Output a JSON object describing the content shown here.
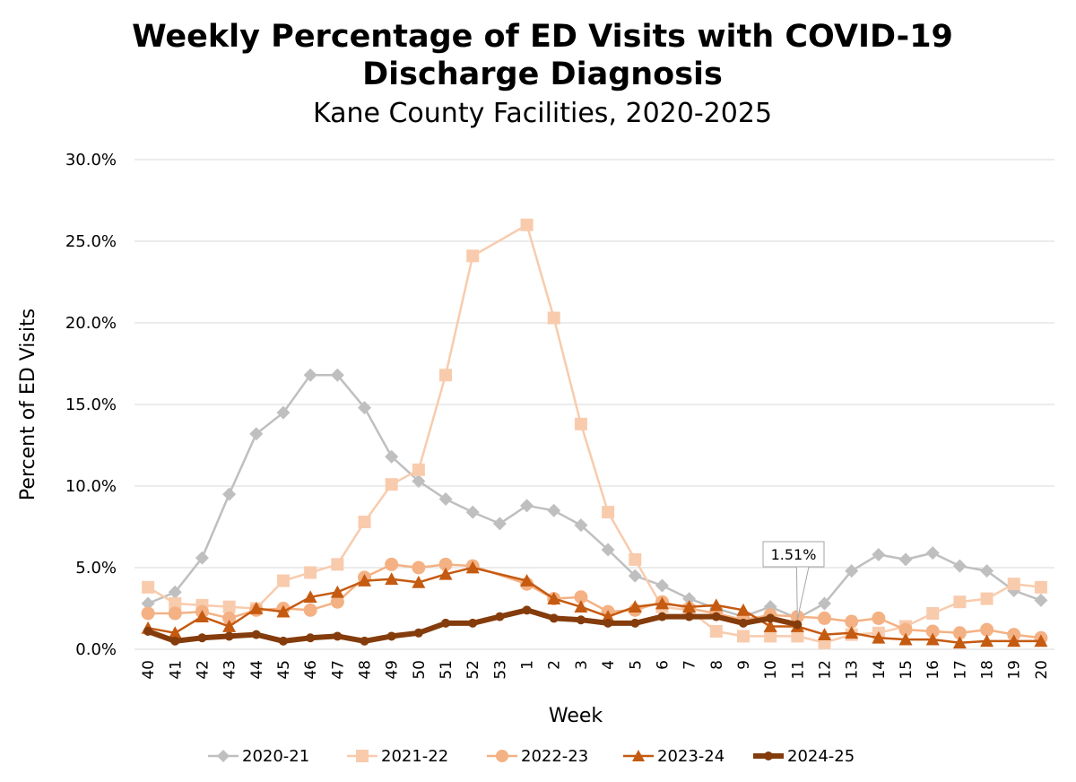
{
  "chart_data": {
    "type": "line",
    "title_lines": [
      "Weekly Percentage of ED Visits with COVID-19",
      "Discharge Diagnosis"
    ],
    "subtitle": "Kane County Facilities, 2020-2025",
    "xlabel": "Week",
    "ylabel": "Percent of ED Visits",
    "categories": [
      "40",
      "41",
      "42",
      "43",
      "44",
      "45",
      "46",
      "47",
      "48",
      "49",
      "50",
      "51",
      "52",
      "53",
      "1",
      "2",
      "3",
      "4",
      "5",
      "6",
      "7",
      "8",
      "9",
      "10",
      "11",
      "12",
      "13",
      "14",
      "15",
      "16",
      "17",
      "18",
      "19",
      "20"
    ],
    "ylim": [
      0,
      30
    ],
    "yticks": [
      0,
      5,
      10,
      15,
      20,
      25,
      30
    ],
    "ytick_labels": [
      "0.0%",
      "5.0%",
      "10.0%",
      "15.0%",
      "20.0%",
      "25.0%",
      "30.0%"
    ],
    "grid": "horizontal",
    "legend_position": "bottom",
    "series": [
      {
        "name": "2020-21",
        "color": "#BFBFBF",
        "marker": "diamond",
        "values": [
          2.8,
          3.5,
          5.6,
          9.5,
          13.2,
          14.5,
          16.8,
          16.8,
          14.8,
          11.8,
          10.3,
          9.2,
          8.4,
          7.7,
          8.8,
          8.5,
          7.6,
          6.1,
          4.5,
          3.9,
          3.1,
          2.5,
          2.0,
          2.6,
          1.9,
          2.8,
          4.8,
          5.8,
          5.5,
          5.9,
          5.1,
          4.8,
          3.6,
          3.0
        ]
      },
      {
        "name": "2021-22",
        "color": "#F8CBAD",
        "marker": "square",
        "values": [
          3.8,
          2.8,
          2.7,
          2.6,
          2.5,
          4.2,
          4.7,
          5.2,
          7.8,
          10.1,
          11.0,
          16.8,
          24.1,
          null,
          26.0,
          20.3,
          13.8,
          8.4,
          5.5,
          2.6,
          2.4,
          1.1,
          0.8,
          0.8,
          0.8,
          0.4,
          0.9,
          1.0,
          1.4,
          2.2,
          2.9,
          3.1,
          4.0,
          3.8
        ]
      },
      {
        "name": "2022-23",
        "color": "#F4B183",
        "marker": "circle",
        "values": [
          2.2,
          2.2,
          2.3,
          1.9,
          2.4,
          2.5,
          2.4,
          2.9,
          4.4,
          5.2,
          5.0,
          5.2,
          5.1,
          null,
          4.0,
          3.1,
          3.2,
          2.3,
          2.4,
          2.9,
          2.5,
          2.2,
          1.8,
          2.1,
          2.0,
          1.9,
          1.7,
          1.9,
          1.2,
          1.1,
          1.0,
          1.2,
          0.9,
          0.7
        ]
      },
      {
        "name": "2023-24",
        "color": "#C55A11",
        "marker": "triangle",
        "values": [
          1.3,
          1.0,
          2.0,
          1.4,
          2.5,
          2.3,
          3.2,
          3.5,
          4.2,
          4.3,
          4.1,
          4.6,
          5.0,
          null,
          4.2,
          3.1,
          2.6,
          2.0,
          2.6,
          2.8,
          2.6,
          2.7,
          2.4,
          1.4,
          1.4,
          0.9,
          1.0,
          0.7,
          0.6,
          0.6,
          0.4,
          0.5,
          0.5,
          0.5
        ]
      },
      {
        "name": "2024-25",
        "color": "#843C0C",
        "marker": "circle",
        "values": [
          1.1,
          0.5,
          0.7,
          0.8,
          0.9,
          0.5,
          0.7,
          0.8,
          0.5,
          0.8,
          1.0,
          1.6,
          1.6,
          2.0,
          2.4,
          1.9,
          1.8,
          1.6,
          1.6,
          2.0,
          2.0,
          2.0,
          1.6,
          1.9,
          1.51,
          null,
          null,
          null,
          null,
          null,
          null,
          null,
          null,
          null
        ]
      }
    ],
    "callout": {
      "text": "1.51%",
      "series": "2024-25",
      "category": "11"
    }
  }
}
